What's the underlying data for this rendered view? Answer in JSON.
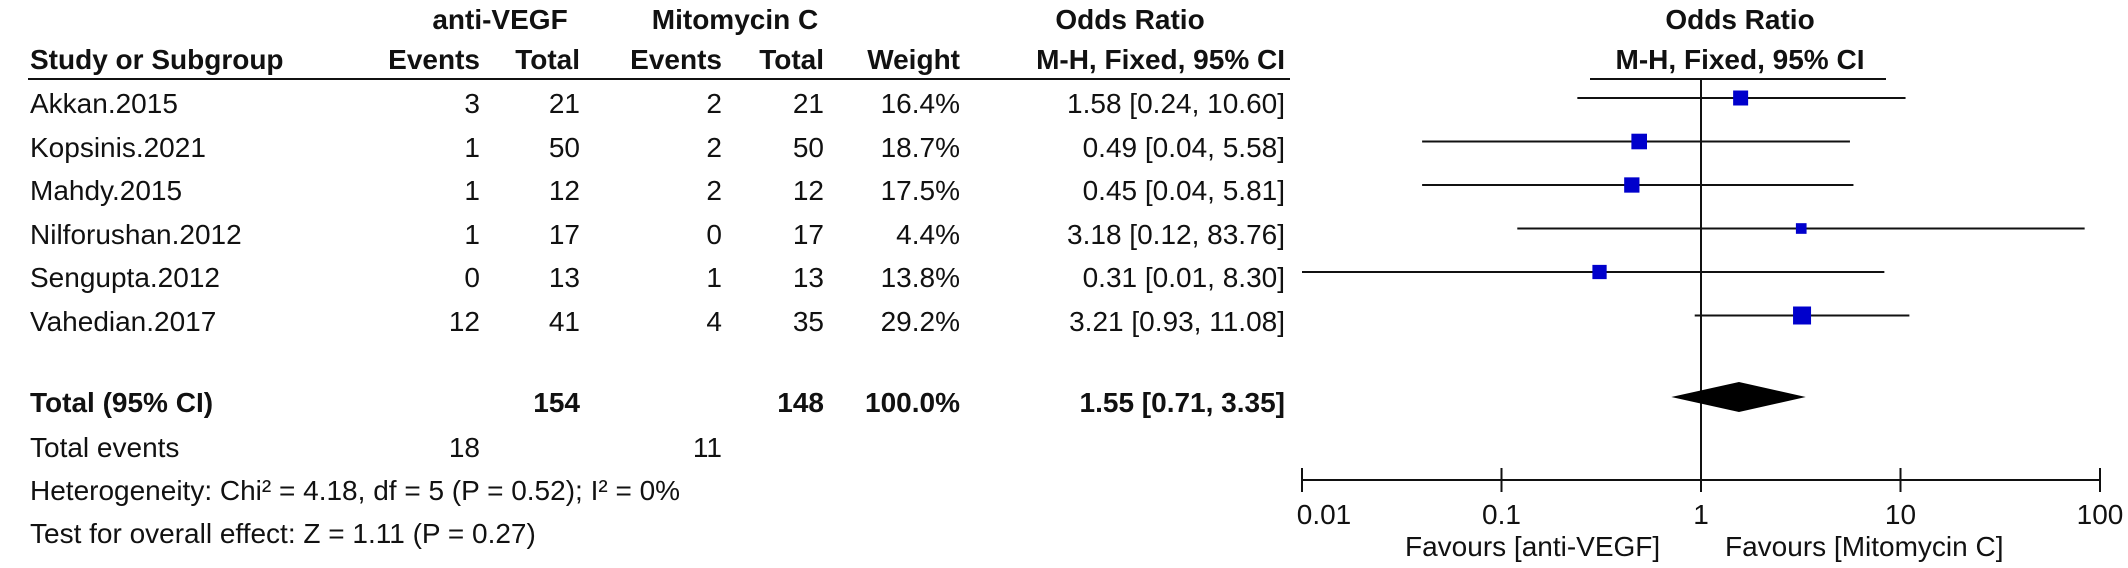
{
  "header": {
    "group1": "anti-VEGF",
    "group2": "Mitomycin C",
    "effect_measure": "Odds Ratio",
    "col_study": "Study or Subgroup",
    "col_events1": "Events",
    "col_total1": "Total",
    "col_events2": "Events",
    "col_total2": "Total",
    "col_weight": "Weight",
    "col_method": "M-H, Fixed, 95% CI",
    "plot_title": "Odds Ratio",
    "plot_method": "M-H, Fixed, 95% CI"
  },
  "studies": [
    {
      "name": "Akkan.2015",
      "events1": "3",
      "total1": "21",
      "events2": "2",
      "total2": "21",
      "weight": "16.4%",
      "ci_text": "1.58 [0.24, 10.60]"
    },
    {
      "name": "Kopsinis.2021",
      "events1": "1",
      "total1": "50",
      "events2": "2",
      "total2": "50",
      "weight": "18.7%",
      "ci_text": "0.49 [0.04, 5.58]"
    },
    {
      "name": "Mahdy.2015",
      "events1": "1",
      "total1": "12",
      "events2": "2",
      "total2": "12",
      "weight": "17.5%",
      "ci_text": "0.45 [0.04, 5.81]"
    },
    {
      "name": "Nilforushan.2012",
      "events1": "1",
      "total1": "17",
      "events2": "0",
      "total2": "17",
      "weight": "4.4%",
      "ci_text": "3.18 [0.12, 83.76]"
    },
    {
      "name": "Sengupta.2012",
      "events1": "0",
      "total1": "13",
      "events2": "1",
      "total2": "13",
      "weight": "13.8%",
      "ci_text": "0.31 [0.01, 8.30]"
    },
    {
      "name": "Vahedian.2017",
      "events1": "12",
      "total1": "41",
      "events2": "4",
      "total2": "35",
      "weight": "29.2%",
      "ci_text": "3.21 [0.93, 11.08]"
    }
  ],
  "total": {
    "label": "Total (95% CI)",
    "total1": "154",
    "total2": "148",
    "weight": "100.0%",
    "ci_text": "1.55 [0.71, 3.35]"
  },
  "total_events": {
    "label": "Total events",
    "events1": "18",
    "events2": "11"
  },
  "heterogeneity": "Heterogeneity: Chi² = 4.18, df = 5 (P = 0.52); I² = 0%",
  "overall_effect": "Test for overall effect: Z = 1.11 (P = 0.27)",
  "axis": {
    "favours_left": "Favours [anti-VEGF]",
    "favours_right": "Favours [Mitomycin C]"
  },
  "chart_data": {
    "type": "scatter",
    "title": "Odds Ratio",
    "scale": "log",
    "xlim": [
      0.01,
      100
    ],
    "xticks": [
      0.01,
      0.1,
      1,
      10,
      100
    ],
    "xtick_labels": [
      "0.01",
      "0.1",
      "1",
      "10",
      "100"
    ],
    "null_line": 1,
    "marker_color": "#0000cc",
    "points": [
      {
        "study": "Akkan.2015",
        "or": 1.58,
        "lo": 0.24,
        "hi": 10.6,
        "weight": 16.4
      },
      {
        "study": "Kopsinis.2021",
        "or": 0.49,
        "lo": 0.04,
        "hi": 5.58,
        "weight": 18.7
      },
      {
        "study": "Mahdy.2015",
        "or": 0.45,
        "lo": 0.04,
        "hi": 5.81,
        "weight": 17.5
      },
      {
        "study": "Nilforushan.2012",
        "or": 3.18,
        "lo": 0.12,
        "hi": 83.76,
        "weight": 4.4
      },
      {
        "study": "Sengupta.2012",
        "or": 0.31,
        "lo": 0.01,
        "hi": 8.3,
        "weight": 13.8
      },
      {
        "study": "Vahedian.2017",
        "or": 3.21,
        "lo": 0.93,
        "hi": 11.08,
        "weight": 29.2
      }
    ],
    "summary": {
      "or": 1.55,
      "lo": 0.71,
      "hi": 3.35
    }
  }
}
